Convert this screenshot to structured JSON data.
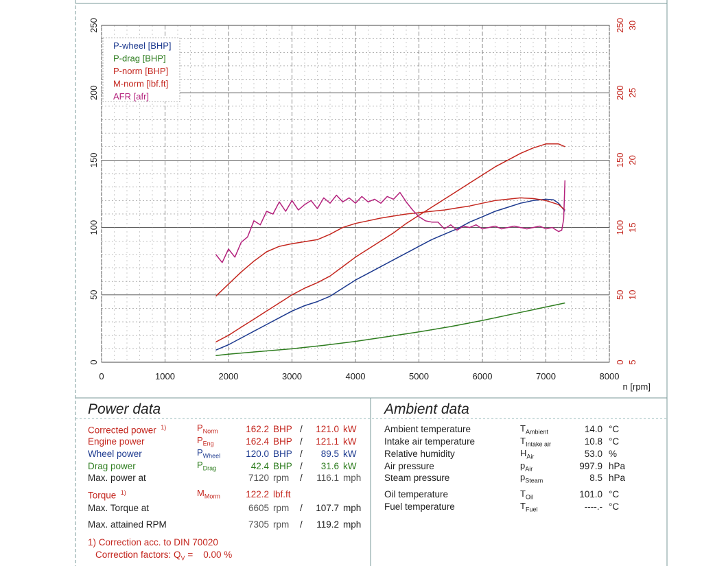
{
  "chart_data": {
    "type": "line",
    "x": {
      "label": "n [rpm]",
      "range": [
        0,
        8000
      ],
      "ticks": [
        0,
        1000,
        2000,
        3000,
        4000,
        5000,
        6000,
        7000,
        8000
      ]
    },
    "y_left": {
      "range": [
        0,
        250
      ],
      "ticks": [
        0,
        50,
        100,
        150,
        200,
        250
      ]
    },
    "y_right_power": {
      "range": [
        0,
        250
      ],
      "ticks": [
        0,
        50,
        100,
        150,
        200,
        250
      ]
    },
    "y_right_afr": {
      "range": [
        5,
        30
      ],
      "ticks": [
        5,
        10,
        15,
        20,
        25,
        30
      ]
    },
    "grid": true,
    "legend_position": "top-left",
    "series": [
      {
        "name": "P-wheel [BHP]",
        "color": "#1d3a8f",
        "axis": "left",
        "x": [
          1800,
          2000,
          2200,
          2400,
          2600,
          2800,
          3000,
          3200,
          3400,
          3600,
          3800,
          4000,
          4200,
          4400,
          4600,
          4800,
          5000,
          5200,
          5400,
          5600,
          5800,
          6000,
          6200,
          6400,
          6600,
          6800,
          7000,
          7120,
          7200,
          7300
        ],
        "y": [
          9,
          13,
          18,
          23,
          28,
          33,
          38,
          42,
          45,
          49,
          55,
          61,
          66,
          71,
          76,
          81,
          86,
          91,
          95,
          99,
          104,
          108,
          112,
          115,
          118,
          120,
          121,
          120.5,
          118,
          112
        ]
      },
      {
        "name": "P-drag [BHP]",
        "color": "#2e7d1f",
        "axis": "left",
        "x": [
          1800,
          2000,
          2500,
          3000,
          3500,
          4000,
          4500,
          5000,
          5500,
          6000,
          6500,
          7000,
          7300
        ],
        "y": [
          5,
          6,
          8,
          10,
          12.5,
          15.5,
          19,
          22.5,
          26.5,
          31,
          36,
          41,
          44
        ]
      },
      {
        "name": "P-norm [BHP]",
        "color": "#c4271f",
        "axis": "left",
        "x": [
          1800,
          2000,
          2200,
          2400,
          2600,
          2800,
          3000,
          3200,
          3400,
          3600,
          3800,
          4000,
          4200,
          4400,
          4600,
          4800,
          5000,
          5200,
          5400,
          5600,
          5800,
          6000,
          6200,
          6400,
          6600,
          6800,
          7000,
          7200,
          7300
        ],
        "y": [
          15,
          20,
          26,
          32,
          38,
          44,
          50,
          55,
          59,
          64,
          71,
          78,
          84,
          90,
          96,
          103,
          109,
          115,
          121,
          127,
          133,
          139,
          145,
          150,
          155,
          159,
          162,
          162,
          160
        ]
      },
      {
        "name": "M-norm [lbf.ft]",
        "color": "#c4271f",
        "axis": "left",
        "x": [
          1800,
          2000,
          2200,
          2400,
          2600,
          2800,
          3000,
          3200,
          3400,
          3600,
          3800,
          4000,
          4200,
          4400,
          4600,
          4800,
          5000,
          5200,
          5400,
          5600,
          5800,
          6000,
          6200,
          6400,
          6600,
          6800,
          7000,
          7200,
          7300
        ],
        "y": [
          49,
          58,
          67,
          75,
          82,
          86,
          88,
          89.5,
          91,
          95,
          100,
          103,
          105,
          107,
          108.5,
          110,
          111,
          112,
          113,
          114.5,
          116,
          118,
          120,
          121,
          122,
          121.5,
          120,
          117,
          113
        ]
      },
      {
        "name": "AFR [afr]",
        "color": "#b4227d",
        "axis": "right_afr",
        "x": [
          1800,
          1900,
          2000,
          2100,
          2200,
          2300,
          2400,
          2500,
          2600,
          2700,
          2800,
          2900,
          3000,
          3100,
          3200,
          3300,
          3400,
          3500,
          3600,
          3700,
          3800,
          3900,
          4000,
          4100,
          4200,
          4300,
          4400,
          4500,
          4600,
          4700,
          4800,
          4900,
          5000,
          5100,
          5200,
          5300,
          5400,
          5500,
          5600,
          5700,
          5800,
          5900,
          6000,
          6100,
          6200,
          6300,
          6400,
          6500,
          6600,
          6700,
          6800,
          6900,
          7000,
          7100,
          7200,
          7250,
          7280,
          7300
        ],
        "y": [
          13,
          12.4,
          13.4,
          12.8,
          13.9,
          14.3,
          15.5,
          15.2,
          16.2,
          16,
          16.9,
          16.2,
          17,
          16.3,
          16.7,
          17,
          16.4,
          17.2,
          16.8,
          17.4,
          16.9,
          17.2,
          16.8,
          17.3,
          16.9,
          17.1,
          16.8,
          17.3,
          17.1,
          17.6,
          16.9,
          16.3,
          15.8,
          15.5,
          15.4,
          15.4,
          14.9,
          15.2,
          14.8,
          15.1,
          15,
          15.2,
          14.9,
          15,
          15.1,
          14.9,
          15,
          15.1,
          15,
          14.9,
          15,
          15.1,
          14.9,
          15,
          14.7,
          14.8,
          15.6,
          18.5
        ]
      }
    ]
  },
  "power_data": {
    "title": "Power data",
    "rows": [
      {
        "label": "Corrected power",
        "note": "1)",
        "sym": "P",
        "sub": "Norm",
        "v1": "162.2",
        "u1": "BHP",
        "sep": "/",
        "v2": "121.0",
        "u2": "kW",
        "color": "#c4271f"
      },
      {
        "label": "Engine power",
        "note": "",
        "sym": "P",
        "sub": "Eng",
        "v1": "162.4",
        "u1": "BHP",
        "sep": "/",
        "v2": "121.1",
        "u2": "kW",
        "color": "#c4271f"
      },
      {
        "label": "Wheel power",
        "note": "",
        "sym": "P",
        "sub": "Wheel",
        "v1": "120.0",
        "u1": "BHP",
        "sep": "/",
        "v2": "89.5",
        "u2": "kW",
        "color": "#1d3a8f"
      },
      {
        "label": "Drag power",
        "note": "",
        "sym": "P",
        "sub": "Drag",
        "v1": "42.4",
        "u1": "BHP",
        "sep": "/",
        "v2": "31.6",
        "u2": "kW",
        "color": "#2e7d1f"
      },
      {
        "label": "Max. power at",
        "note": "",
        "sym": "",
        "sub": "",
        "v1": "7120",
        "u1": "rpm",
        "sep": "/",
        "v2": "116.1",
        "u2": "mph",
        "color": "#222222"
      }
    ],
    "torque": {
      "label": "Torque",
      "note": "1)",
      "sym": "M",
      "sub": "Morm",
      "v1": "122.2",
      "u1": "lbf.ft",
      "color": "#c4271f"
    },
    "max_torque": {
      "label": "Max. Torque at",
      "v1": "6605",
      "u1": "rpm",
      "sep": "/",
      "v2": "107.7",
      "u2": "mph"
    },
    "max_rpm": {
      "label": "Max. attained RPM",
      "v1": "7305",
      "u1": "rpm",
      "sep": "/",
      "v2": "119.2",
      "u2": "mph"
    },
    "footnote_1": "1) Correction acc. to DIN 70020",
    "footnote_2": "Correction factors: Q",
    "footnote_2_sub": "V",
    "footnote_2_value": "=    0.00 %"
  },
  "ambient_data": {
    "title": "Ambient data",
    "rows": [
      {
        "label": "Ambient temperature",
        "sym": "T",
        "sub": "Ambient",
        "value": "14.0",
        "unit": "°C"
      },
      {
        "label": "Intake air temperature",
        "sym": "T",
        "sub": "Intake air",
        "value": "10.8",
        "unit": "°C"
      },
      {
        "label": "Relative humidity",
        "sym": "H",
        "sub": "Air",
        "value": "53.0",
        "unit": "%"
      },
      {
        "label": "Air pressure",
        "sym": "p",
        "sub": "Air",
        "value": "997.9",
        "unit": "hPa"
      },
      {
        "label": "Steam pressure",
        "sym": "p",
        "sub": "Steam",
        "value": "8.5",
        "unit": "hPa"
      }
    ],
    "rows2": [
      {
        "label": "Oil temperature",
        "sym": "T",
        "sub": "Oil",
        "value": "101.0",
        "unit": "°C"
      },
      {
        "label": "Fuel temperature",
        "sym": "T",
        "sub": "Fuel",
        "value": "----.-",
        "unit": "°C"
      }
    ]
  }
}
